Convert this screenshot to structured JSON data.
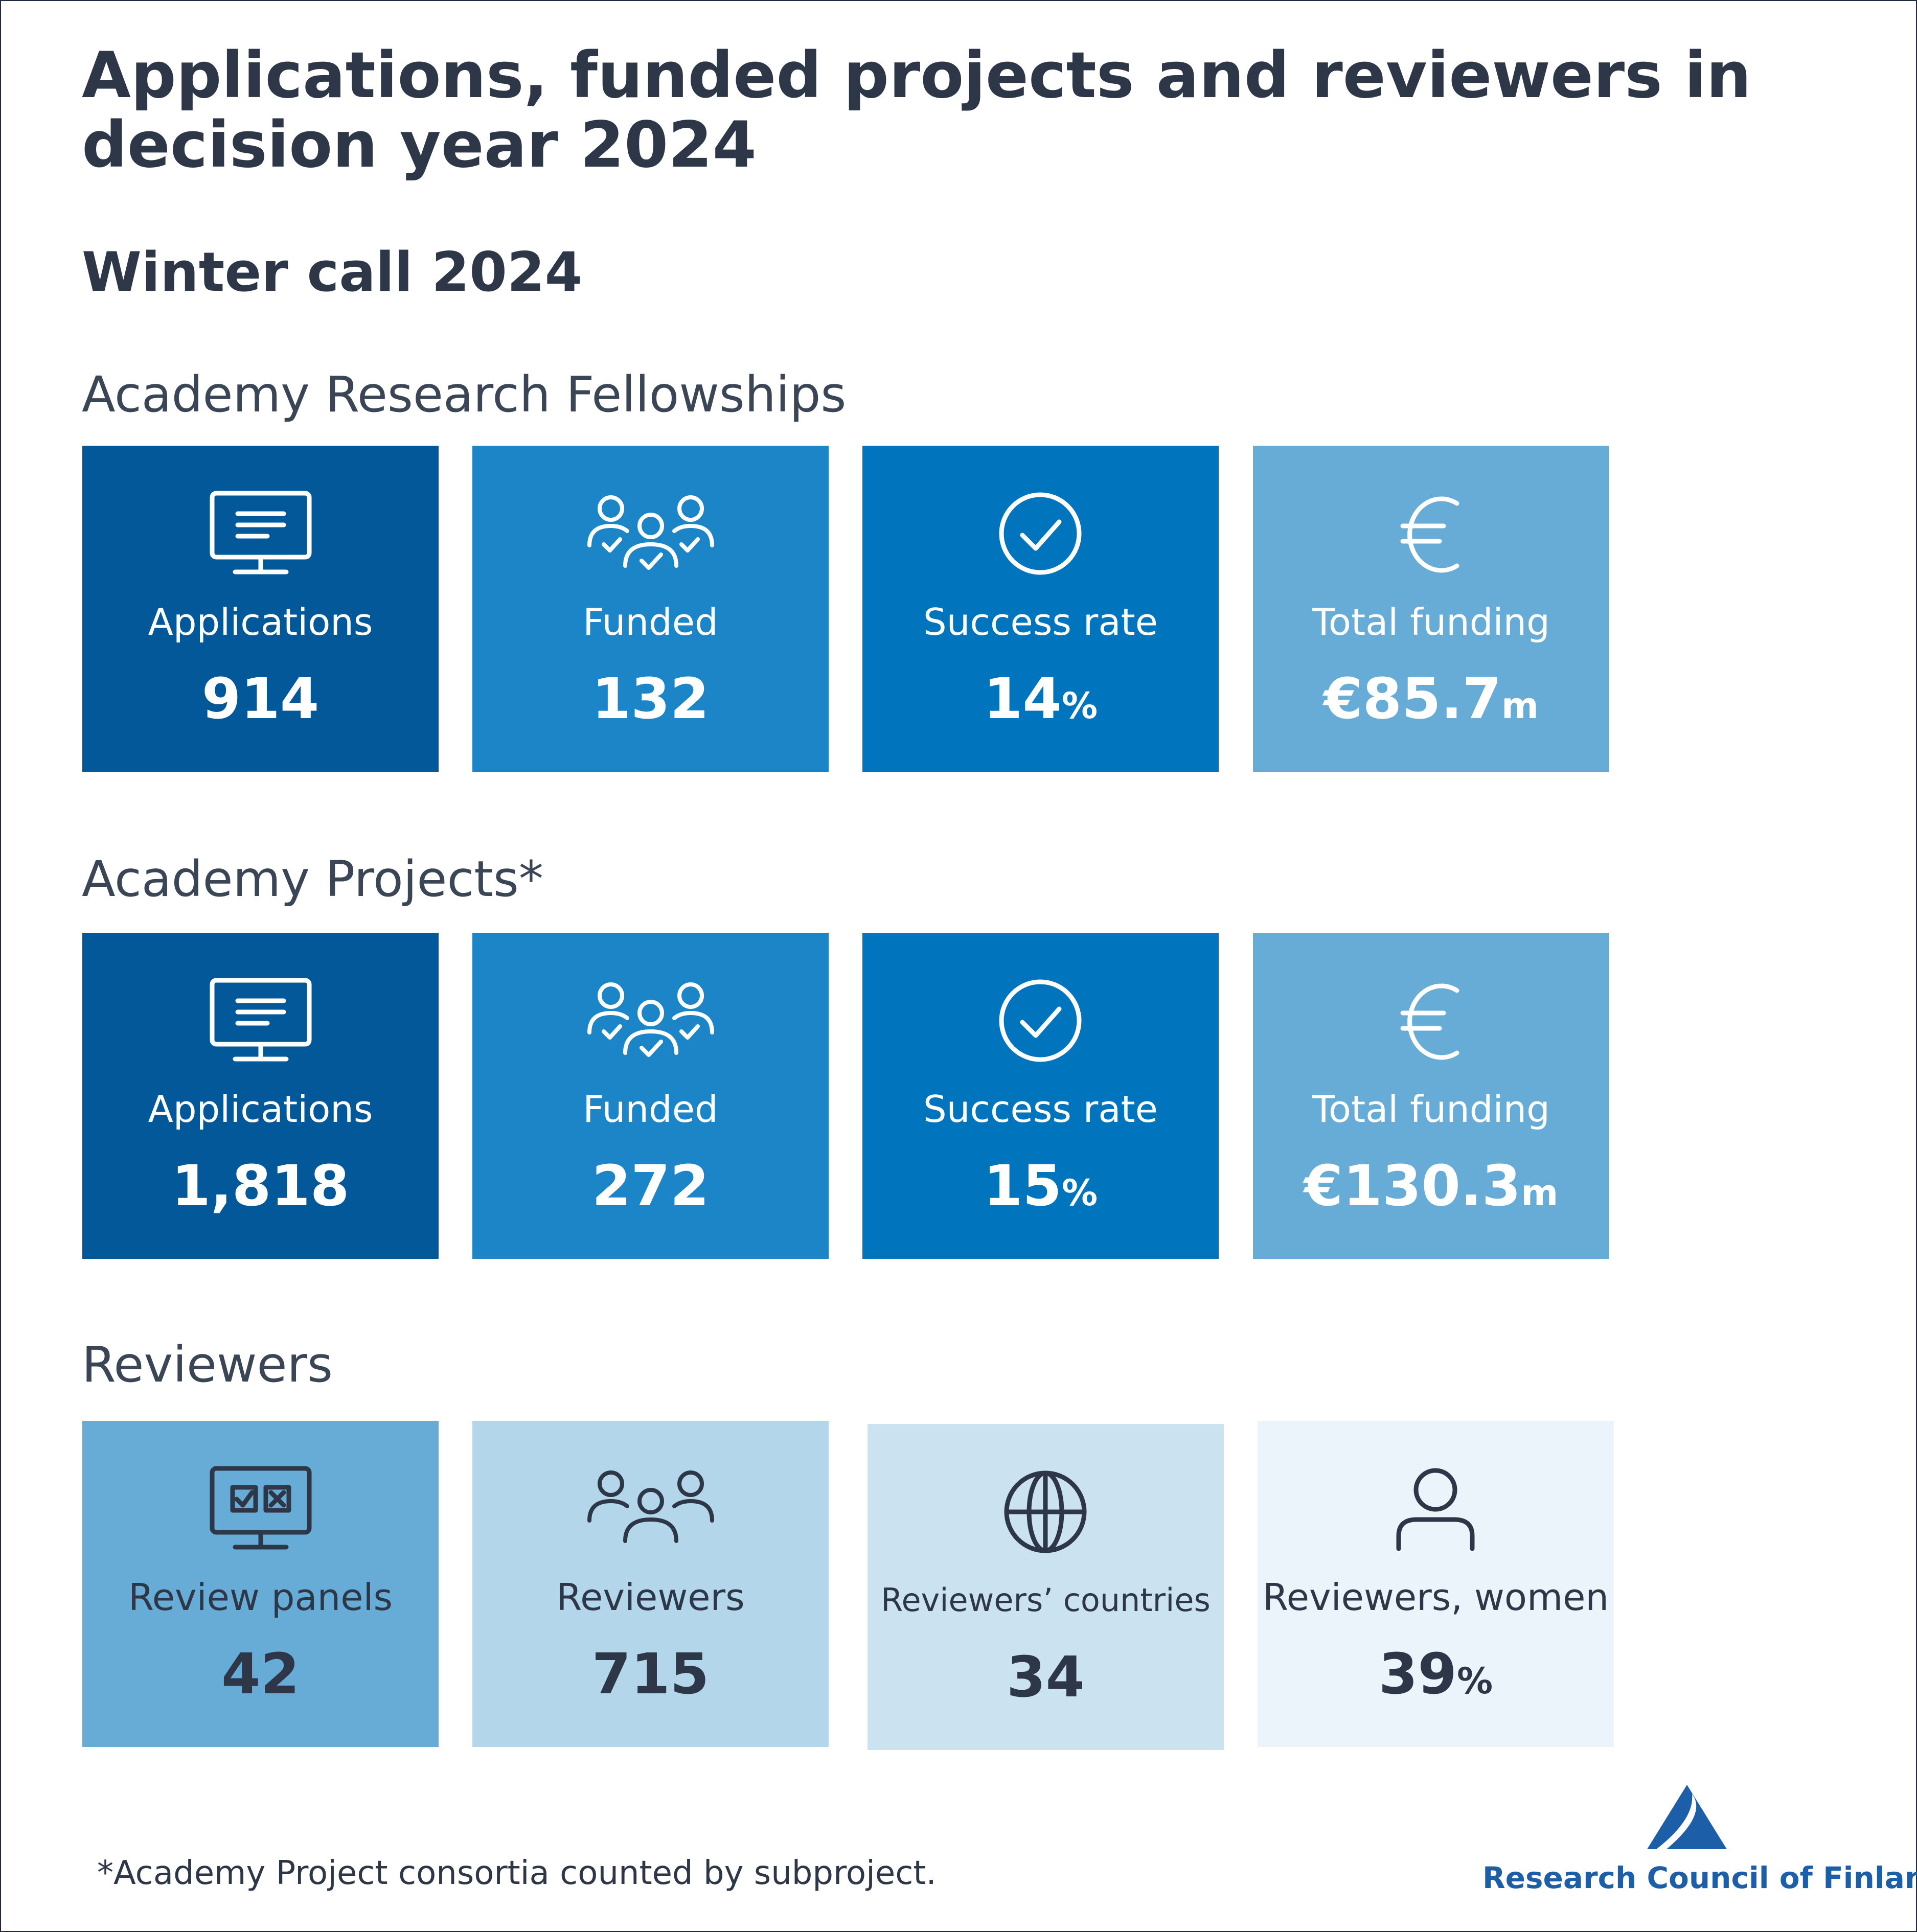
{
  "title": "Applications, funded projects and reviewers in decision year 2024",
  "subtitle": "Winter call 2024",
  "sections": [
    {
      "heading": "Academy Research Fellowships",
      "tiles": [
        {
          "icon": "monitor-document-icon",
          "label": "Applications",
          "value": "914",
          "unit": "",
          "color": "#03589a"
        },
        {
          "icon": "people-check-icon",
          "label": "Funded",
          "value": "132",
          "unit": "",
          "color": "#1b85c7"
        },
        {
          "icon": "check-circle-icon",
          "label": "Success rate",
          "value": "14",
          "unit": "%",
          "color": "#0074bd"
        },
        {
          "icon": "euro-icon",
          "label": "Total funding",
          "value": "€85.7",
          "unit": "m",
          "color": "#67acd7"
        }
      ]
    },
    {
      "heading": "Academy Projects*",
      "tiles": [
        {
          "icon": "monitor-document-icon",
          "label": "Applications",
          "value": "1,818",
          "unit": "",
          "color": "#03589a"
        },
        {
          "icon": "people-check-icon",
          "label": "Funded",
          "value": "272",
          "unit": "",
          "color": "#1b85c7"
        },
        {
          "icon": "check-circle-icon",
          "label": "Success rate",
          "value": "15",
          "unit": "%",
          "color": "#0074bd"
        },
        {
          "icon": "euro-icon",
          "label": "Total funding",
          "value": "€130.3",
          "unit": "m",
          "color": "#67acd7"
        }
      ]
    },
    {
      "heading": "Reviewers",
      "tiles": [
        {
          "icon": "monitor-checkbox-icon",
          "label": "Review panels",
          "value": "42",
          "unit": "",
          "color": "#67acd7"
        },
        {
          "icon": "people-group-icon",
          "label": "Reviewers",
          "value": "715",
          "unit": "",
          "color": "#b3d6eb"
        },
        {
          "icon": "globe-icon",
          "label": "Reviewers’ countries",
          "value": "34",
          "unit": "",
          "color": "#cbe3f1"
        },
        {
          "icon": "person-icon",
          "label": "Reviewers, women",
          "value": "39",
          "unit": "%",
          "color": "#ebf4fb"
        }
      ]
    }
  ],
  "footnote": "*Academy Project consortia counted by subproject.",
  "logo": {
    "text": "Research Council of Finland",
    "color": "#1d5ea8"
  }
}
